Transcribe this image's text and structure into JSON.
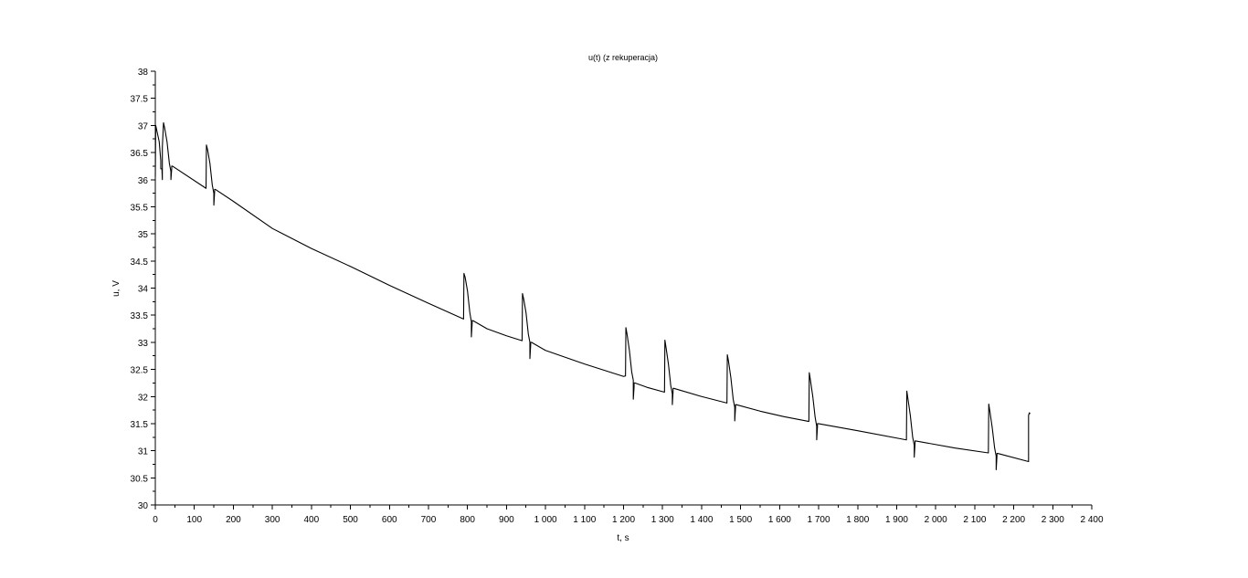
{
  "chart_data": {
    "type": "line",
    "title": "u(t) (z rekuperacja)",
    "xlabel": "t, s",
    "ylabel": "u, V",
    "xlim": [
      0,
      2400
    ],
    "ylim": [
      30,
      38
    ],
    "grid": false,
    "x_ticks": [
      0,
      100,
      200,
      300,
      400,
      500,
      600,
      700,
      800,
      900,
      1000,
      1100,
      1200,
      1300,
      1400,
      1500,
      1600,
      1700,
      1800,
      1900,
      2000,
      2100,
      2200,
      2300,
      2400
    ],
    "x_tick_labels": [
      "0",
      "100",
      "200",
      "300",
      "400",
      "500",
      "600",
      "700",
      "800",
      "900",
      "1 000",
      "1 100",
      "1 200",
      "1 300",
      "1 400",
      "1 500",
      "1 600",
      "1 700",
      "1 800",
      "1 900",
      "2 000",
      "2 100",
      "2 200",
      "2 300",
      "2 400"
    ],
    "y_ticks": [
      30,
      30.5,
      31,
      31.5,
      32,
      32.5,
      33,
      33.5,
      34,
      34.5,
      35,
      35.5,
      36,
      36.5,
      37,
      37.5,
      38
    ],
    "y_tick_labels": [
      "30",
      "30.5",
      "31",
      "31.5",
      "32",
      "32.5",
      "33",
      "33.5",
      "34",
      "34.5",
      "35",
      "35.5",
      "36",
      "36.5",
      "37",
      "37.5",
      "38"
    ],
    "series": [
      {
        "color": "#000000",
        "x": [
          0,
          1,
          4,
          10,
          14,
          14,
          17,
          18,
          18,
          21,
          24,
          30,
          36,
          40,
          40,
          42,
          42,
          44,
          130,
          131,
          134,
          140,
          146,
          150,
          150,
          152,
          152,
          154,
          200,
          300,
          400,
          500,
          600,
          700,
          790,
          790,
          791,
          794,
          800,
          806,
          810,
          810,
          812,
          812,
          814,
          850,
          900,
          940,
          940,
          941,
          944,
          950,
          956,
          960,
          960,
          962,
          962,
          964,
          1000,
          1100,
          1200,
          1205,
          1205,
          1206,
          1209,
          1215,
          1221,
          1225,
          1225,
          1227,
          1227,
          1229,
          1260,
          1305,
          1305,
          1306,
          1309,
          1315,
          1321,
          1325,
          1325,
          1327,
          1327,
          1329,
          1400,
          1465,
          1465,
          1466,
          1469,
          1475,
          1481,
          1485,
          1485,
          1487,
          1487,
          1489,
          1550,
          1610,
          1675,
          1675,
          1676,
          1679,
          1685,
          1691,
          1695,
          1695,
          1697,
          1697,
          1699,
          1800,
          1925,
          1925,
          1926,
          1929,
          1935,
          1941,
          1945,
          1945,
          1947,
          1947,
          1949,
          2050,
          2135,
          2135,
          2136,
          2139,
          2145,
          2151,
          2155,
          2155,
          2157,
          2157,
          2159,
          2238,
          2238,
          2240,
          2242
        ],
        "y": [
          36.05,
          37.0,
          36.9,
          36.7,
          36.35,
          36.2,
          36.2,
          36.0,
          36.6,
          37.05,
          36.95,
          36.7,
          36.3,
          36.15,
          36.0,
          36.2,
          36.25,
          36.25,
          35.84,
          36.64,
          36.55,
          36.3,
          35.9,
          35.75,
          35.53,
          35.78,
          35.82,
          35.82,
          35.6,
          35.1,
          34.73,
          34.4,
          34.05,
          33.72,
          33.43,
          33.43,
          34.27,
          34.2,
          33.95,
          33.55,
          33.38,
          33.1,
          33.35,
          33.4,
          33.4,
          33.25,
          33.12,
          33.03,
          33.03,
          33.9,
          33.8,
          33.55,
          33.15,
          33.0,
          32.7,
          32.95,
          33.0,
          33.0,
          32.85,
          32.6,
          32.37,
          32.38,
          32.38,
          33.27,
          33.15,
          32.85,
          32.45,
          32.3,
          31.95,
          32.18,
          32.25,
          32.25,
          32.17,
          32.08,
          32.08,
          33.04,
          32.9,
          32.6,
          32.2,
          32.05,
          31.85,
          32.1,
          32.15,
          32.15,
          32.0,
          31.88,
          31.88,
          32.77,
          32.65,
          32.35,
          31.95,
          31.8,
          31.55,
          31.8,
          31.85,
          31.85,
          31.73,
          31.63,
          31.54,
          31.54,
          32.44,
          32.3,
          32.0,
          31.62,
          31.45,
          31.2,
          31.45,
          31.5,
          31.5,
          31.37,
          31.2,
          31.2,
          32.1,
          31.95,
          31.65,
          31.25,
          31.1,
          30.88,
          31.12,
          31.18,
          31.18,
          31.05,
          30.96,
          30.96,
          31.86,
          31.72,
          31.42,
          31.05,
          30.9,
          30.65,
          30.9,
          30.95,
          30.95,
          30.8,
          31.65,
          31.7,
          31.68
        ]
      }
    ]
  }
}
